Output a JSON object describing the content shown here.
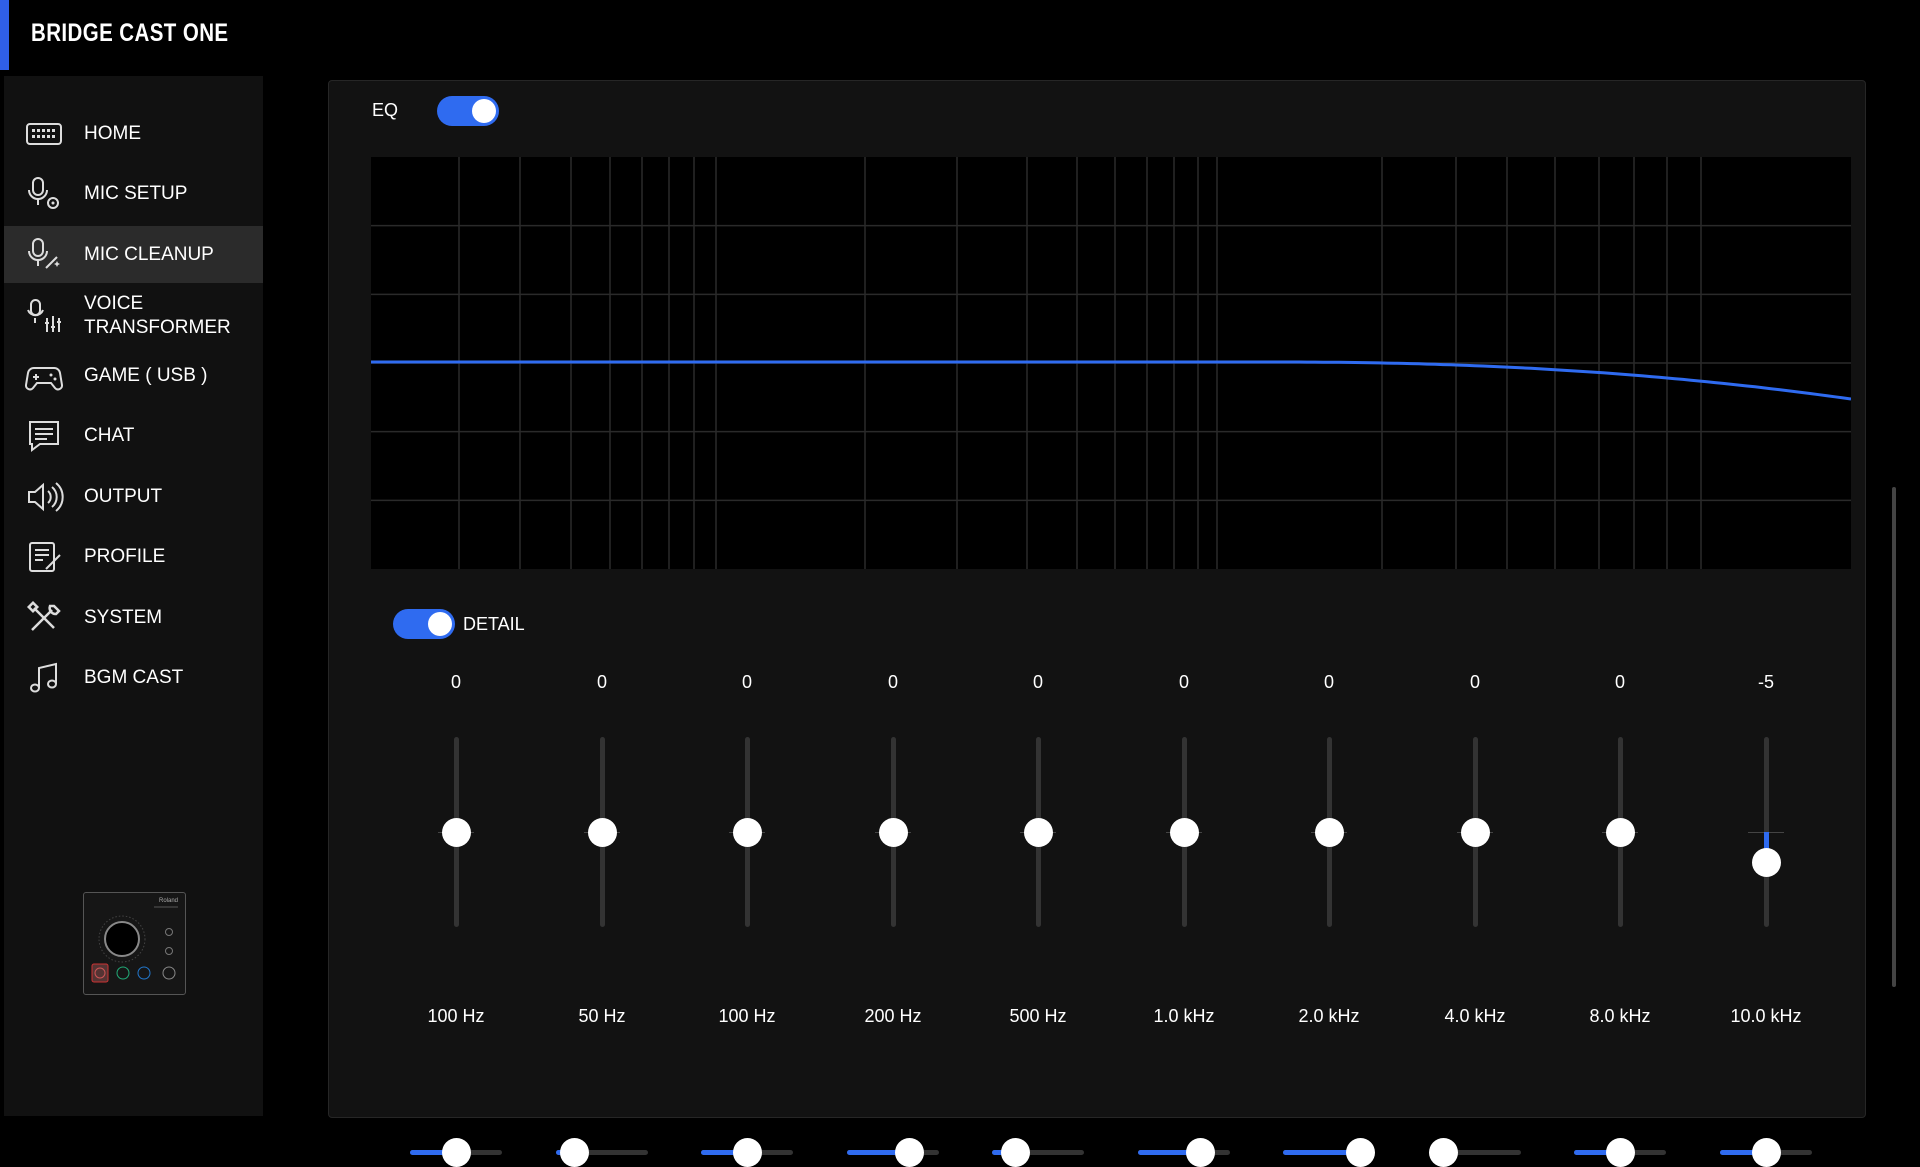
{
  "app": {
    "title": "BRIDGE CAST ONE"
  },
  "sidebar": {
    "items": [
      {
        "label": "HOME",
        "icon": "keyboard-icon"
      },
      {
        "label": "MIC SETUP",
        "icon": "mic-settings-icon"
      },
      {
        "label": "MIC CLEANUP",
        "icon": "mic-sparkle-icon",
        "active": true
      },
      {
        "label": "VOICE\nTRANSFORMER",
        "icon": "mic-sliders-icon"
      },
      {
        "label": "GAME ( USB )",
        "icon": "gamepad-icon"
      },
      {
        "label": "CHAT",
        "icon": "chat-bubble-icon"
      },
      {
        "label": "OUTPUT",
        "icon": "speaker-icon"
      },
      {
        "label": "PROFILE",
        "icon": "profile-edit-icon"
      },
      {
        "label": "SYSTEM",
        "icon": "tools-icon"
      },
      {
        "label": "BGM CAST",
        "icon": "music-note-icon"
      }
    ],
    "device_thumbnail": {
      "icon": "roland-device-icon",
      "brand": "Roland"
    }
  },
  "eq": {
    "label": "EQ",
    "enabled": true,
    "detail_label": "DETAIL",
    "detail_enabled": true,
    "bands": [
      {
        "value": "0",
        "freq": "100 Hz",
        "gain": 0,
        "q": 0.5
      },
      {
        "value": "0",
        "freq": "50 Hz",
        "gain": 0,
        "q": 0.2
      },
      {
        "value": "0",
        "freq": "100 Hz",
        "gain": 0,
        "q": 0.5
      },
      {
        "value": "0",
        "freq": "200 Hz",
        "gain": 0,
        "q": 0.67
      },
      {
        "value": "0",
        "freq": "500 Hz",
        "gain": 0,
        "q": 0.25
      },
      {
        "value": "0",
        "freq": "1.0 kHz",
        "gain": 0,
        "q": 0.67
      },
      {
        "value": "0",
        "freq": "2.0 kHz",
        "gain": 0,
        "q": 0.85
      },
      {
        "value": "0",
        "freq": "4.0 kHz",
        "gain": 0,
        "q": 0.0
      },
      {
        "value": "0",
        "freq": "8.0 kHz",
        "gain": 0,
        "q": 0.5
      },
      {
        "value": "-5",
        "freq": "10.0 kHz",
        "gain": -5,
        "q": 0.5
      }
    ]
  },
  "colors": {
    "accent": "#2f6bf0",
    "background": "#000000",
    "panel": "#121212",
    "sidebar": "#111111",
    "active_item": "#2b2b2b"
  }
}
